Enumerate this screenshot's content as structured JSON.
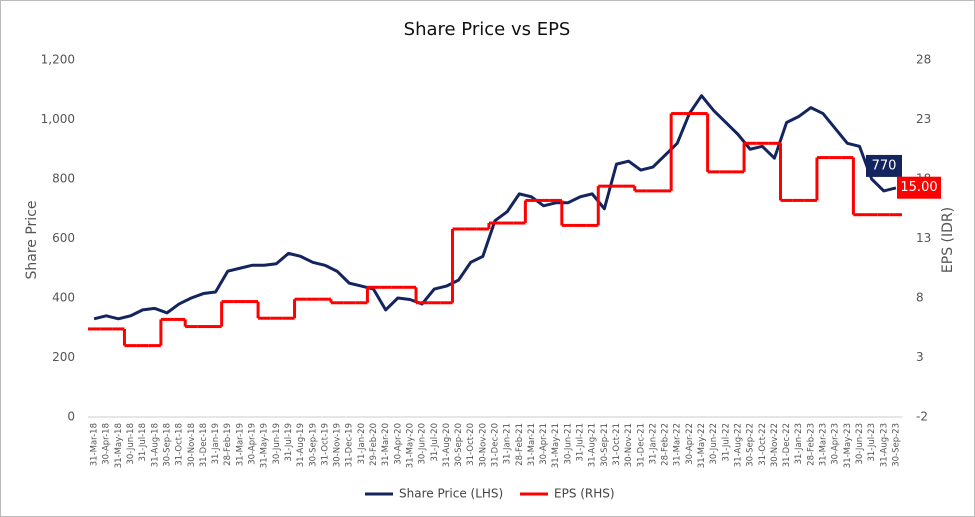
{
  "chart_data": {
    "type": "line",
    "title": "Share Price vs EPS",
    "y_label": "Share Price",
    "y2_label": "EPS (IDR)",
    "categories": [
      "31-Mar-18",
      "30-Apr-18",
      "31-May-18",
      "30-Jun-18",
      "31-Jul-18",
      "31-Aug-18",
      "30-Sep-18",
      "31-Oct-18",
      "30-Nov-18",
      "31-Dec-18",
      "31-Jan-19",
      "28-Feb-19",
      "31-Mar-19",
      "30-Apr-19",
      "31-May-19",
      "30-Jun-19",
      "31-Jul-19",
      "31-Aug-19",
      "30-Sep-19",
      "31-Oct-19",
      "30-Nov-19",
      "31-Dec-19",
      "31-Jan-20",
      "29-Feb-20",
      "31-Mar-20",
      "30-Apr-20",
      "31-May-20",
      "30-Jun-20",
      "31-Jul-20",
      "31-Aug-20",
      "30-Sep-20",
      "31-Oct-20",
      "30-Nov-20",
      "31-Dec-20",
      "31-Jan-21",
      "28-Feb-21",
      "31-Mar-21",
      "30-Apr-21",
      "31-May-21",
      "30-Jun-21",
      "31-Jul-21",
      "31-Aug-21",
      "30-Sep-21",
      "31-Oct-21",
      "30-Nov-21",
      "31-Dec-21",
      "31-Jan-22",
      "28-Feb-22",
      "31-Mar-22",
      "30-Apr-22",
      "31-May-22",
      "30-Jun-22",
      "31-Jul-22",
      "31-Aug-22",
      "30-Sep-22",
      "31-Oct-22",
      "30-Nov-22",
      "31-Dec-22",
      "31-Jan-23",
      "28-Feb-23",
      "31-Mar-23",
      "30-Apr-23",
      "31-May-23",
      "30-Jun-23",
      "31-Jul-23",
      "31-Aug-23",
      "30-Sep-23"
    ],
    "series": [
      {
        "name": "Share Price (LHS)",
        "color": "#14245e",
        "axis": "y",
        "values": [
          330,
          340,
          330,
          340,
          360,
          365,
          350,
          380,
          400,
          415,
          420,
          490,
          500,
          510,
          510,
          515,
          550,
          540,
          520,
          510,
          490,
          450,
          440,
          430,
          360,
          400,
          395,
          380,
          430,
          440,
          460,
          520,
          540,
          660,
          690,
          750,
          740,
          710,
          720,
          720,
          740,
          750,
          700,
          850,
          860,
          830,
          840,
          880,
          920,
          1020,
          1080,
          1030,
          990,
          950,
          900,
          910,
          870,
          990,
          1010,
          1040,
          1020,
          970,
          920,
          910,
          800,
          760,
          770
        ]
      },
      {
        "name": "EPS (RHS)",
        "color": "#ff0000",
        "axis": "y2",
        "step": true,
        "values": [
          5.4,
          5.4,
          5.4,
          4.0,
          4.0,
          4.0,
          6.2,
          6.2,
          5.6,
          5.6,
          5.6,
          7.7,
          7.7,
          7.7,
          6.3,
          6.3,
          6.3,
          7.9,
          7.9,
          7.9,
          7.6,
          7.6,
          7.6,
          8.9,
          8.9,
          8.9,
          8.9,
          7.6,
          7.6,
          7.6,
          13.8,
          13.8,
          13.8,
          14.3,
          14.3,
          14.3,
          16.2,
          16.2,
          16.2,
          14.1,
          14.1,
          14.1,
          17.4,
          17.4,
          17.4,
          17.0,
          17.0,
          17.0,
          23.5,
          23.5,
          23.5,
          18.6,
          18.6,
          18.6,
          21.0,
          21.0,
          21.0,
          16.2,
          16.2,
          16.2,
          19.8,
          19.8,
          19.8,
          15.0,
          15.0,
          15.0,
          15
        ],
        "value_labels": [
          null,
          null,
          null,
          null,
          null,
          null,
          null,
          null,
          null,
          null,
          null,
          null,
          null,
          null,
          null,
          null,
          null,
          null,
          null,
          null,
          null,
          null,
          null,
          null,
          null,
          null,
          null,
          null,
          null,
          null,
          null,
          null,
          null,
          null,
          null,
          null,
          null,
          null,
          null,
          null,
          null,
          null,
          null,
          null,
          null,
          null,
          null,
          null,
          null,
          null,
          null,
          null,
          null,
          null,
          null,
          null,
          null,
          null,
          null,
          null,
          null,
          null,
          null,
          null,
          null,
          null,
          "15.00"
        ]
      }
    ],
    "ylim": [
      0,
      1200
    ],
    "yticks": [
      0,
      200,
      400,
      600,
      800,
      {
        "value": 1000,
        "label": "1,000"
      },
      {
        "value": 1200,
        "label": "1,200"
      }
    ],
    "y2lim": [
      -2,
      28
    ],
    "y2ticks": [
      -2,
      3,
      8,
      13,
      18,
      23,
      28
    ],
    "legend": "bottom"
  }
}
